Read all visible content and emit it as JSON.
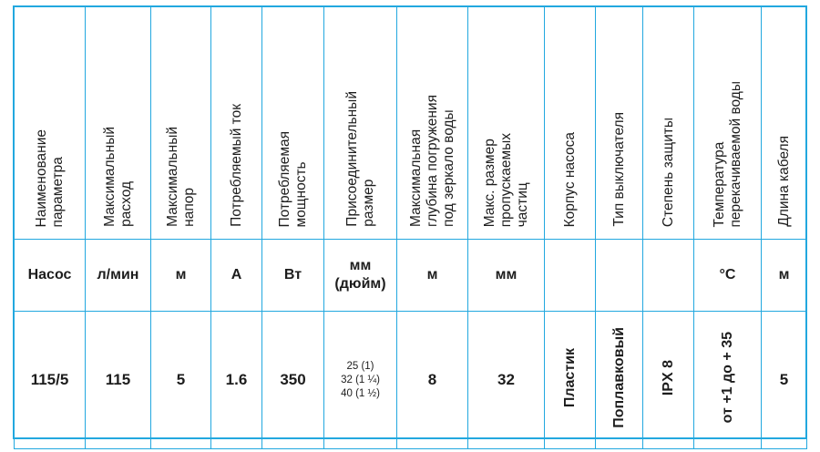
{
  "colors": {
    "border": "#22a8df",
    "text": "#1d1d1d"
  },
  "headers": [
    "Наименование\nпараметра",
    "Максимальный\nрасход",
    "Максимальный\nнапор",
    "Потребляемый ток",
    "Потребляемая\nмощность",
    "Присоединительный\nразмер",
    "Максимальная\nглубина погружения\nпод зеркало воды",
    "Макс. размер\nпропускаемых\nчастиц",
    "Корпус насоса",
    "Тип выключателя",
    "Степень защиты",
    "Температура\nперекачиваемой воды",
    "Длина кабеля"
  ],
  "units": [
    "Насос",
    "л/мин",
    "м",
    "А",
    "Вт",
    "мм\n(дюйм)",
    "м",
    "мм",
    "",
    "",
    "",
    "°C",
    "м"
  ],
  "values": {
    "model": "115/5",
    "flow": "115",
    "head": "5",
    "current": "1.6",
    "power": "350",
    "connection": [
      "25 (1)",
      "32 (1 ¼)",
      "40 (1 ½)"
    ],
    "depth": "8",
    "particles": "32",
    "housing": "Пластик",
    "switch": "Поплавковый",
    "protection": "IPX 8",
    "temperature": "от +1 до + 35",
    "cable": "5"
  }
}
